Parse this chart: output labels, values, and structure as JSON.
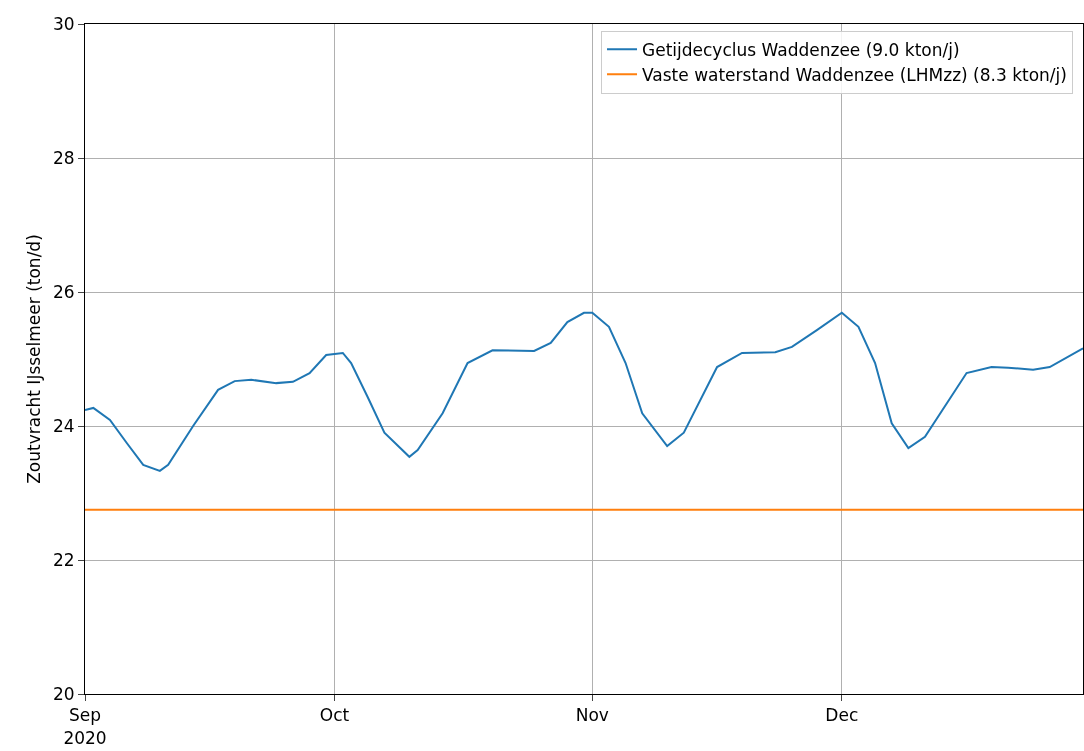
{
  "chart_data": {
    "type": "line",
    "ylabel": "Zoutvracht IJsselmeer (ton/d)",
    "xlim": [
      "2020-09-01",
      "2020-12-30"
    ],
    "xticks": [
      {
        "value": "2020-09-01",
        "label": "Sep\n2020"
      },
      {
        "value": "2020-10-01",
        "label": "Oct"
      },
      {
        "value": "2020-11-01",
        "label": "Nov"
      },
      {
        "value": "2020-12-01",
        "label": "Dec"
      }
    ],
    "ylim": [
      20,
      30
    ],
    "yticks": [
      20,
      22,
      24,
      26,
      28,
      30
    ],
    "grid": true,
    "legend": "top right",
    "marker": "none",
    "line_style": "solid",
    "series": [
      {
        "name": "Getijdecyclus Waddenzee (9.0 kton/j)",
        "color": "#1f77b4",
        "x": [
          "2020-09-01",
          "2020-09-02",
          "2020-09-04",
          "2020-09-06",
          "2020-09-08",
          "2020-09-10",
          "2020-09-11",
          "2020-09-14",
          "2020-09-17",
          "2020-09-19",
          "2020-09-21",
          "2020-09-24",
          "2020-09-26",
          "2020-09-28",
          "2020-09-30",
          "2020-10-02",
          "2020-10-03",
          "2020-10-05",
          "2020-10-07",
          "2020-10-10",
          "2020-10-11",
          "2020-10-14",
          "2020-10-17",
          "2020-10-20",
          "2020-10-25",
          "2020-10-27",
          "2020-10-29",
          "2020-10-31",
          "2020-11-01",
          "2020-11-03",
          "2020-11-05",
          "2020-11-07",
          "2020-11-10",
          "2020-11-12",
          "2020-11-16",
          "2020-11-19",
          "2020-11-23",
          "2020-11-25",
          "2020-11-28",
          "2020-12-01",
          "2020-12-03",
          "2020-12-05",
          "2020-12-07",
          "2020-12-09",
          "2020-12-11",
          "2020-12-16",
          "2020-12-19",
          "2020-12-21",
          "2020-12-24",
          "2020-12-26",
          "2020-12-30"
        ],
        "values": [
          24.24,
          24.27,
          24.09,
          23.75,
          23.42,
          23.33,
          23.42,
          24.0,
          24.54,
          24.67,
          24.69,
          24.64,
          24.66,
          24.79,
          25.06,
          25.09,
          24.94,
          24.43,
          23.9,
          23.54,
          23.64,
          24.19,
          24.94,
          25.13,
          25.12,
          25.24,
          25.55,
          25.69,
          25.69,
          25.48,
          24.94,
          24.19,
          23.7,
          23.9,
          24.88,
          25.09,
          25.1,
          25.18,
          25.43,
          25.69,
          25.48,
          24.94,
          24.04,
          23.67,
          23.84,
          24.79,
          24.88,
          24.87,
          24.84,
          24.88,
          25.16
        ]
      },
      {
        "name": "Vaste waterstand Waddenzee (LHMzz) (8.3 kton/j)",
        "color": "#ff7f0e",
        "x": [
          "2020-09-01",
          "2020-12-30"
        ],
        "values": [
          22.75,
          22.75
        ]
      }
    ]
  }
}
